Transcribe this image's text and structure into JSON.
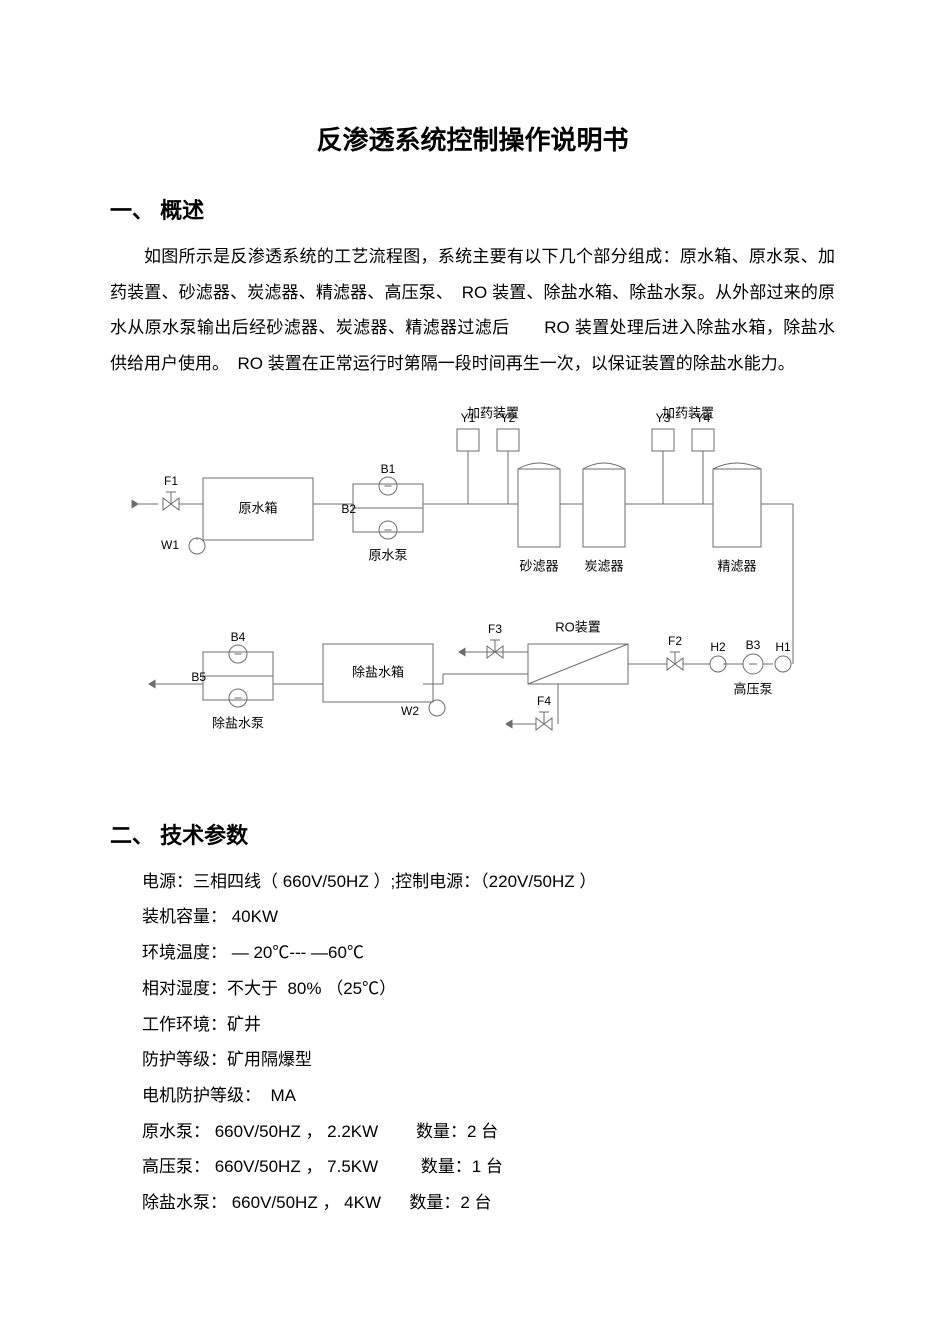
{
  "title": "反渗透系统控制操作说明书",
  "section1": {
    "heading": "一、 概述",
    "body": "如图所示是反渗透系统的工艺流程图，系统主要有以下几个部分组成：原水箱、原水泵、加药装置、砂滤器、炭滤器、精滤器、高压泵、　RO 装置、除盐水箱、除盐水泵。从外部过来的原水从原水泵输出后经砂滤器、炭滤器、精滤器过滤后　　RO 装置处理后进入除盐水箱，除盐水供给用户使用。　RO 装置在正常运行时第隔一段时间再生一次，以保证装置的除盐水能力。"
  },
  "diagram": {
    "stroke": "#6d6d6d",
    "text": "#000000",
    "fontsize_label": 12,
    "fontsize_tag": 12,
    "labels": {
      "dose1": "加药装置",
      "dose2": "加药装置",
      "raw_tank": "原水箱",
      "raw_pump": "原水泵",
      "sand": "砂滤器",
      "carbon": "炭滤器",
      "fine": "精滤器",
      "ro": "RO装置",
      "hp_pump": "高压泵",
      "desalt_tank": "除盐水箱",
      "desalt_pump": "除盐水泵"
    },
    "tags": {
      "F1": "F1",
      "W1": "W1",
      "B1": "B1",
      "B2": "B2",
      "Y1": "Y1",
      "Y2": "Y2",
      "Y3": "Y3",
      "Y4": "Y4",
      "F2": "F2",
      "F3": "F3",
      "F4": "F4",
      "H1": "H1",
      "H2": "H2",
      "B3": "B3",
      "B4": "B4",
      "B5": "B5",
      "W2": "W2"
    }
  },
  "section2": {
    "heading": "二、 技术参数",
    "specs": [
      "电源：三相四线（ 660V/50HZ ）;控制电源：（220V/50HZ ）",
      "装机容量： 40KW",
      "环境温度： — 20℃--- —60℃",
      "相对湿度：不大于  80% （25℃）",
      "工作环境：矿井",
      "防护等级：矿用隔爆型",
      "电机防护等级：  MA",
      "原水泵： 660V/50HZ ， 2.2KW        数量：2 台",
      "高压泵： 660V/50HZ ， 7.5KW         数量：1 台",
      "除盐水泵： 660V/50HZ ， 4KW      数量：2 台"
    ]
  }
}
